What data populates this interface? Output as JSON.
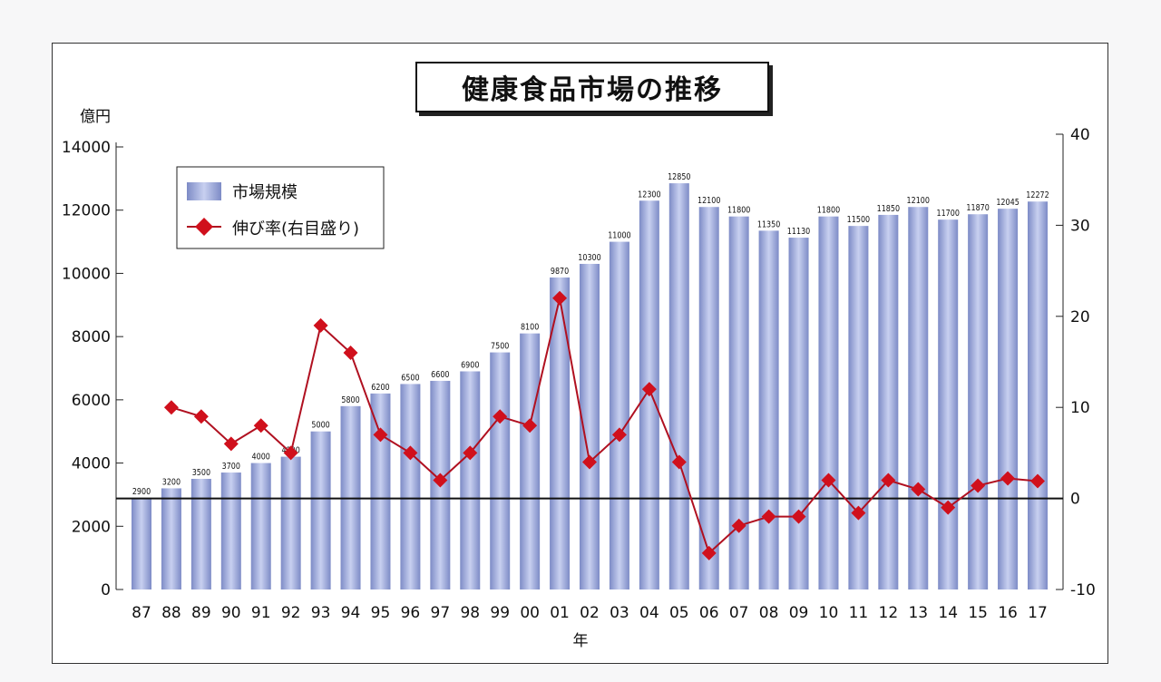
{
  "chart_data": {
    "type": "bar+line",
    "title": "健康食品市場の推移",
    "ylabel_left": "億円",
    "xlabel": "年",
    "categories": [
      "87",
      "88",
      "89",
      "90",
      "91",
      "92",
      "93",
      "94",
      "95",
      "96",
      "97",
      "98",
      "99",
      "00",
      "01",
      "02",
      "03",
      "04",
      "05",
      "06",
      "07",
      "08",
      "09",
      "10",
      "11",
      "12",
      "13",
      "14",
      "15",
      "16",
      "17"
    ],
    "series": [
      {
        "name": "市場規模",
        "type": "bar",
        "axis": "left",
        "color": "#9aa6d8",
        "values": [
          2900,
          3200,
          3500,
          3700,
          4000,
          4200,
          5000,
          5800,
          6200,
          6500,
          6600,
          6900,
          7500,
          8100,
          9870,
          10300,
          11000,
          12300,
          12850,
          12100,
          11800,
          11350,
          11130,
          11800,
          11500,
          11850,
          12100,
          11700,
          11870,
          12045,
          12272
        ],
        "labels": [
          "2900",
          "3200",
          "3500",
          "3700",
          "4000",
          "4200",
          "5000",
          "5800",
          "6200",
          "6500",
          "6600",
          "6900",
          "7500",
          "8100",
          "9870",
          "10300",
          "11000",
          "12300",
          "12850",
          "12100",
          "11800",
          "11350",
          "11130",
          "11800",
          "11500",
          "11850",
          "12100",
          "11700",
          "11870",
          "12045",
          "12272"
        ]
      },
      {
        "name": "伸び率(右目盛り)",
        "type": "line",
        "axis": "right",
        "color": "#d0101c",
        "values": [
          null,
          10,
          9,
          6,
          8,
          5,
          19,
          16,
          7,
          5,
          2,
          5,
          9,
          8,
          22,
          4,
          7,
          12,
          4,
          -6,
          -3,
          -2,
          -2,
          2,
          -1.6,
          2,
          1,
          -1,
          1.4,
          2.2,
          1.9
        ]
      }
    ],
    "ylim_left": [
      0,
      14000
    ],
    "yticks_left": [
      "0",
      "2000",
      "4000",
      "6000",
      "8000",
      "10000",
      "12000",
      "14000"
    ],
    "ylim_right": [
      -10,
      40
    ],
    "yticks_right": [
      "-10",
      "0",
      "10",
      "20",
      "30",
      "40"
    ],
    "legend": "top-left",
    "grid": false
  }
}
